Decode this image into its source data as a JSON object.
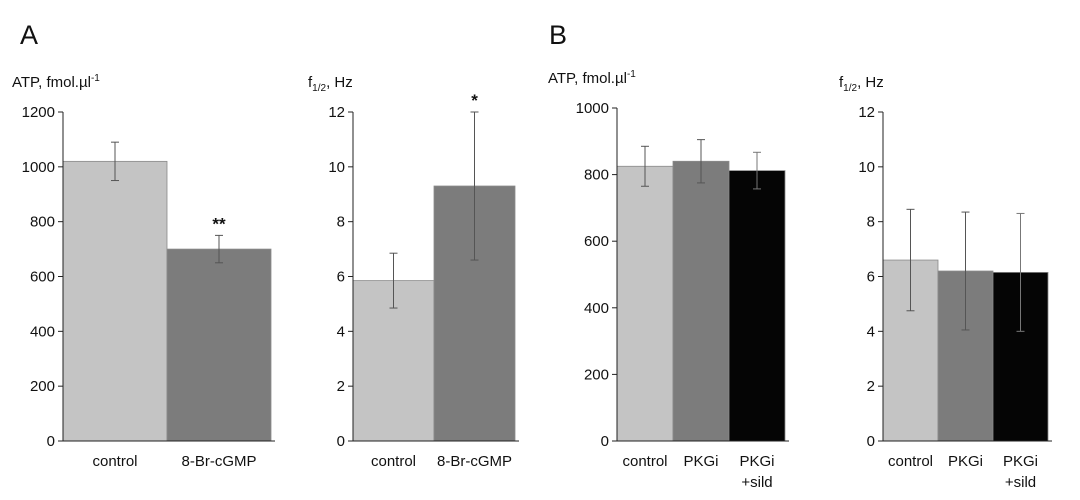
{
  "panels": [
    {
      "letter": "A"
    },
    {
      "letter": "B"
    }
  ],
  "chart_data": [
    {
      "type": "bar",
      "panel": "A",
      "ylabel": "ATP, fmol.µl",
      "ylabel_sup": "-1",
      "ylim": [
        0,
        1200
      ],
      "yticks": [
        "0",
        "200",
        "400",
        "600",
        "800",
        "1000",
        "1200"
      ],
      "categories": [
        [
          "control"
        ],
        [
          "8-Br-cGMP"
        ]
      ],
      "values": [
        1020,
        700
      ],
      "errors": [
        70,
        50
      ],
      "annotations": [
        "",
        "**"
      ],
      "colors": [
        "#c4c4c4",
        "#7c7c7c"
      ],
      "grid": false
    },
    {
      "type": "bar",
      "panel": "A",
      "ylabel": "f",
      "ylabel_sub": "1/2",
      "ylabel_suffix": ", Hz",
      "ylim": [
        0,
        12
      ],
      "yticks": [
        "0",
        "2",
        "4",
        "6",
        "8",
        "10",
        "12"
      ],
      "categories": [
        [
          "control"
        ],
        [
          "8-Br-cGMP"
        ]
      ],
      "values": [
        5.85,
        9.3
      ],
      "errors": [
        1.0,
        2.7
      ],
      "annotations": [
        "",
        "*"
      ],
      "colors": [
        "#c4c4c4",
        "#7c7c7c"
      ],
      "grid": false
    },
    {
      "type": "bar",
      "panel": "B",
      "ylabel": "ATP, fmol.µl",
      "ylabel_sup": "-1",
      "ylim": [
        0,
        1000
      ],
      "yticks": [
        "0",
        "200",
        "400",
        "600",
        "800",
        "1000"
      ],
      "categories": [
        [
          "control"
        ],
        [
          "PKGi"
        ],
        [
          "PKGi",
          "+sild"
        ]
      ],
      "values": [
        825,
        840,
        812
      ],
      "errors": [
        60,
        65,
        55
      ],
      "annotations": [
        "",
        "",
        ""
      ],
      "colors": [
        "#c4c4c4",
        "#7c7c7c",
        "#050505"
      ],
      "grid": false
    },
    {
      "type": "bar",
      "panel": "B",
      "ylabel": "f",
      "ylabel_sub": "1/2",
      "ylabel_suffix": ", Hz",
      "ylim": [
        0,
        12
      ],
      "yticks": [
        "0",
        "2",
        "4",
        "6",
        "8",
        "10",
        "12"
      ],
      "categories": [
        [
          "control"
        ],
        [
          "PKGi"
        ],
        [
          "PKGi",
          "+sild"
        ]
      ],
      "values": [
        6.6,
        6.2,
        6.15
      ],
      "errors": [
        1.85,
        2.15,
        2.15
      ],
      "annotations": [
        "",
        "",
        ""
      ],
      "colors": [
        "#c4c4c4",
        "#7c7c7c",
        "#050505"
      ],
      "grid": false
    }
  ]
}
